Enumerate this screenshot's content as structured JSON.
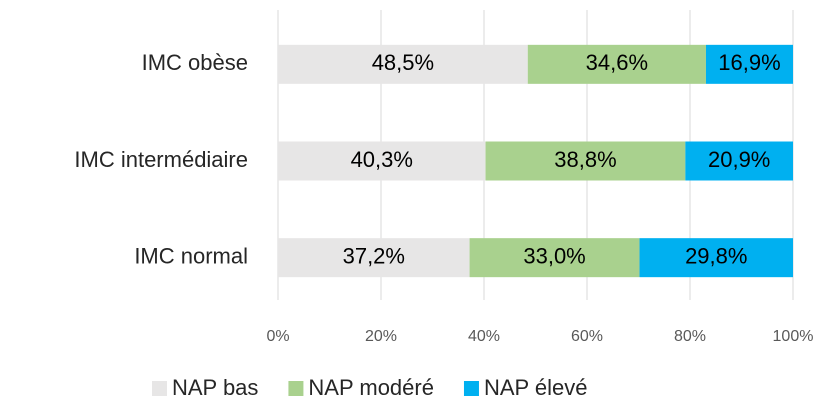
{
  "chart_data": {
    "type": "stacked_barh",
    "categories": [
      "IMC obèse",
      "IMC intermédiaire",
      "IMC normal"
    ],
    "series": [
      {
        "name": "NAP bas",
        "color": "#e7e6e6",
        "values": [
          48.5,
          40.3,
          37.2
        ],
        "value_labels": [
          "48,5%",
          "40,3%",
          "37,2%"
        ]
      },
      {
        "name": "NAP modéré",
        "color": "#a9d18e",
        "values": [
          34.6,
          38.8,
          33.0
        ],
        "value_labels": [
          "34,6%",
          "38,8%",
          "33,0%"
        ]
      },
      {
        "name": "NAP élevé",
        "color": "#00b0f0",
        "values": [
          16.9,
          20.9,
          29.8
        ],
        "value_labels": [
          "16,9%",
          "20,9%",
          "29,8%"
        ]
      }
    ],
    "xlim": [
      0,
      100
    ],
    "xticks": [
      {
        "value": 0,
        "label": "0%"
      },
      {
        "value": 20,
        "label": "20%"
      },
      {
        "value": 40,
        "label": "40%"
      },
      {
        "value": 60,
        "label": "60%"
      },
      {
        "value": 80,
        "label": "80%"
      },
      {
        "value": 100,
        "label": "100%"
      }
    ],
    "grid": true,
    "legend": "bottom"
  }
}
